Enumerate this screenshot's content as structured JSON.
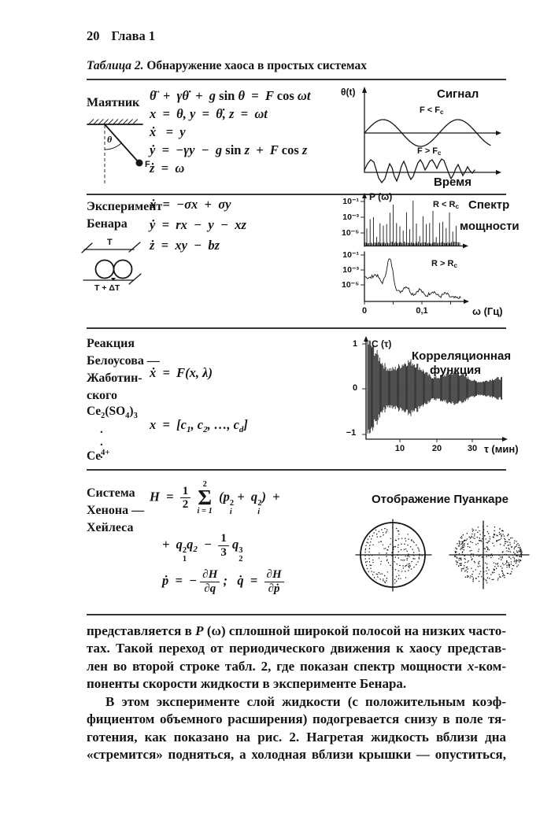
{
  "page": {
    "number": "20",
    "chapter": "Глава 1",
    "caption_label": "Таблица 2.",
    "caption_text": " Обнаружение хаоса в простых системах"
  },
  "pendulum": {
    "label": "Маятник",
    "theta": "θ",
    "force": "F",
    "equations": [
      "θ̈  +  γθ̇  +  g <span class=\"rm\">sin</span> θ  =  F <span class=\"rm\">cos</span> ωt",
      "x  =  θ, y  =  θ̇, z  =  ωt",
      "ẋ   =  y",
      "ẏ  =  −γy  −  g <span class=\"rm\">sin</span> z  +  F <span class=\"rm\">cos</span> z",
      "ż  =  ω"
    ],
    "signal": {
      "ylabel": "θ(t)",
      "title": "Сигнал",
      "periodic_label": "F &lt; F<span class=\"tsb\">c</span>",
      "chaotic_label": "F &gt; F<span class=\"tsb\">c</span>",
      "xlabel": "Время"
    }
  },
  "benard": {
    "label1": "Эксперимент",
    "label2": "Бенара",
    "equations": [
      "ẋ  =  −σx  +  σy",
      "ẏ  =  rx  −  y  −  xz",
      "ż  =  xy  −  bz"
    ],
    "diagram": {
      "top_plate": "T",
      "bottom_plate": "T + ΔT"
    },
    "spectrum": {
      "ylabel": "P (ω)",
      "title1": "Спектр",
      "title2": "мощности",
      "below_label": "R &lt; R<span class=\"tsb\">c</span>",
      "above_label": "R &gt; R<span class=\"tsb\">c</span>",
      "yticks": [
        "10⁻¹",
        "10⁻³",
        "10⁻⁵"
      ],
      "xtick0": "0",
      "xtick1": "0,1",
      "xlabel": "ω (Гц)"
    }
  },
  "bz": {
    "labels": [
      "Реакция",
      "Белоусова —",
      "Жаботин-",
      "ского"
    ],
    "chem_top": "Ce<sub>2</sub>(SO<sub>4</sub>)<sub>3</sub>",
    "dots": ".\n.\n.",
    "chem_bottom": "Ce<sup>4+</sup>",
    "eq1": "ẋ  =  F(x, λ)",
    "eq2": "x  =  [c<span class=\"sb\">1</span>, c<span class=\"sb\">2</span>, …, c<span class=\"sb\">d</span>]",
    "correlation": {
      "ylabel": "C (τ)",
      "title1": "Корреляционная",
      "title2": "функция",
      "ytick_top": "1",
      "ytick_mid": "0",
      "ytick_bot": "−1",
      "xticks": [
        "10",
        "20",
        "30"
      ],
      "xlabel": "τ (мин)"
    }
  },
  "henon": {
    "labels": [
      "Система",
      "Хенона —",
      "Хейлеса"
    ],
    "eq1": "H  =  <span class=\"frac rm\"><span>1</span><span>2</span></span>  <span class=\"sum\"><span class=\"rm\">2</span><span class=\"sg\">Σ</span><span>i = 1</span></span>  (p<span class=\"stk\"><span class=\"rm\">2</span><span>i</span></span> +  q<span class=\"stk\"><span class=\"rm\">2</span><span>i</span></span>)  +",
    "eq2": "+  q<span class=\"stk\"><span class=\"rm\">2</span><span class=\"rm\">1</span></span>q<span class=\"sb\">2</span>  −  <span class=\"frac rm\"><span>1</span><span>3</span></span> q<span class=\"stk\"><span class=\"rm\">3</span><span class=\"rm\">2</span></span>",
    "eq3": "ṗ  =  − <span class=\"frac\"><span>∂H</span><span>∂q</span></span> ;   q̇  =  <span class=\"frac\"><span>∂H</span><span>∂ṗ</span></span>",
    "poincare": {
      "title": "Отображение Пуанкаре"
    }
  },
  "body": {
    "p1": [
      "представляется в <i>P</i> (ω) сплошной широкой полосой на низких часто-",
      "тах. Такой переход от периодического движения к хаосу представ-",
      "лен во второй строке табл. 2, где показан спектр мощности <i>x</i>-ком-",
      "поненты скорости жидкости в эксперименте Бенара."
    ],
    "p2": [
      "В этом эксперименте слой жидкости (с положительным коэф-",
      "фициентом объемного расширения) подогревается снизу в поле тя-",
      "готения, как показано на рис. 2. Нагретая жидкость вблизи дна",
      "«стремится» подняться, а холодная вблизи крышки — опуститься,"
    ]
  }
}
